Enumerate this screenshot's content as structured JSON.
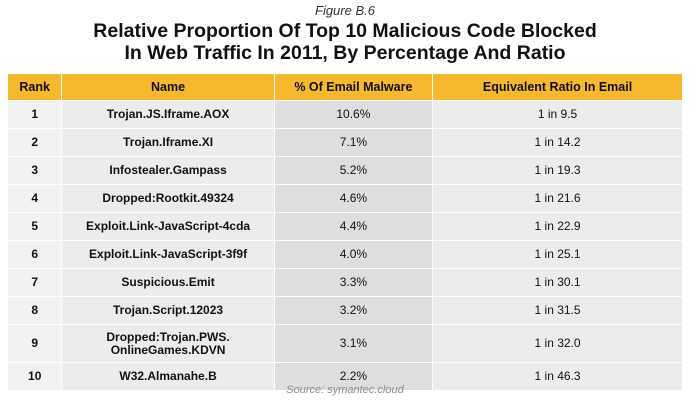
{
  "figure_label": "Figure B.6",
  "title_lines": [
    "Relative Proportion Of Top 10 Malicious Code Blocked",
    "In Web Traffic In 2011, By Percentage And Ratio"
  ],
  "table": {
    "headers": [
      "Rank",
      "Name",
      "% Of Email Malware",
      "Equivalent Ratio In Email"
    ],
    "rows": [
      {
        "rank": "1",
        "name_lines": [
          "Trojan.JS.Iframe.AOX"
        ],
        "pct": "10.6%",
        "ratio": "1 in 9.5"
      },
      {
        "rank": "2",
        "name_lines": [
          "Trojan.Iframe.XI"
        ],
        "pct": "7.1%",
        "ratio": "1 in 14.2"
      },
      {
        "rank": "3",
        "name_lines": [
          "Infostealer.Gampass"
        ],
        "pct": "5.2%",
        "ratio": "1 in 19.3"
      },
      {
        "rank": "4",
        "name_lines": [
          "Dropped:Rootkit.49324"
        ],
        "pct": "4.6%",
        "ratio": "1 in 21.6"
      },
      {
        "rank": "5",
        "name_lines": [
          "Exploit.Link-JavaScript-4cda"
        ],
        "pct": "4.4%",
        "ratio": "1 in 22.9"
      },
      {
        "rank": "6",
        "name_lines": [
          "Exploit.Link-JavaScript-3f9f"
        ],
        "pct": "4.0%",
        "ratio": "1 in 25.1"
      },
      {
        "rank": "7",
        "name_lines": [
          "Suspicious.Emit"
        ],
        "pct": "3.3%",
        "ratio": "1 in 30.1"
      },
      {
        "rank": "8",
        "name_lines": [
          "Trojan.Script.12023"
        ],
        "pct": "3.2%",
        "ratio": "1 in 31.5"
      },
      {
        "rank": "9",
        "name_lines": [
          "Dropped:Trojan.PWS.",
          "OnlineGames.KDVN"
        ],
        "pct": "3.1%",
        "ratio": "1 in 32.0"
      },
      {
        "rank": "10",
        "name_lines": [
          "W32.Almanahe.B"
        ],
        "pct": "2.2%",
        "ratio": "1 in 46.3"
      }
    ]
  },
  "source": "Source: symantec.cloud",
  "colors": {
    "header_bg": "#f5b82e",
    "pct_col_bg": "#dedede",
    "row_bg": "#ececec"
  }
}
